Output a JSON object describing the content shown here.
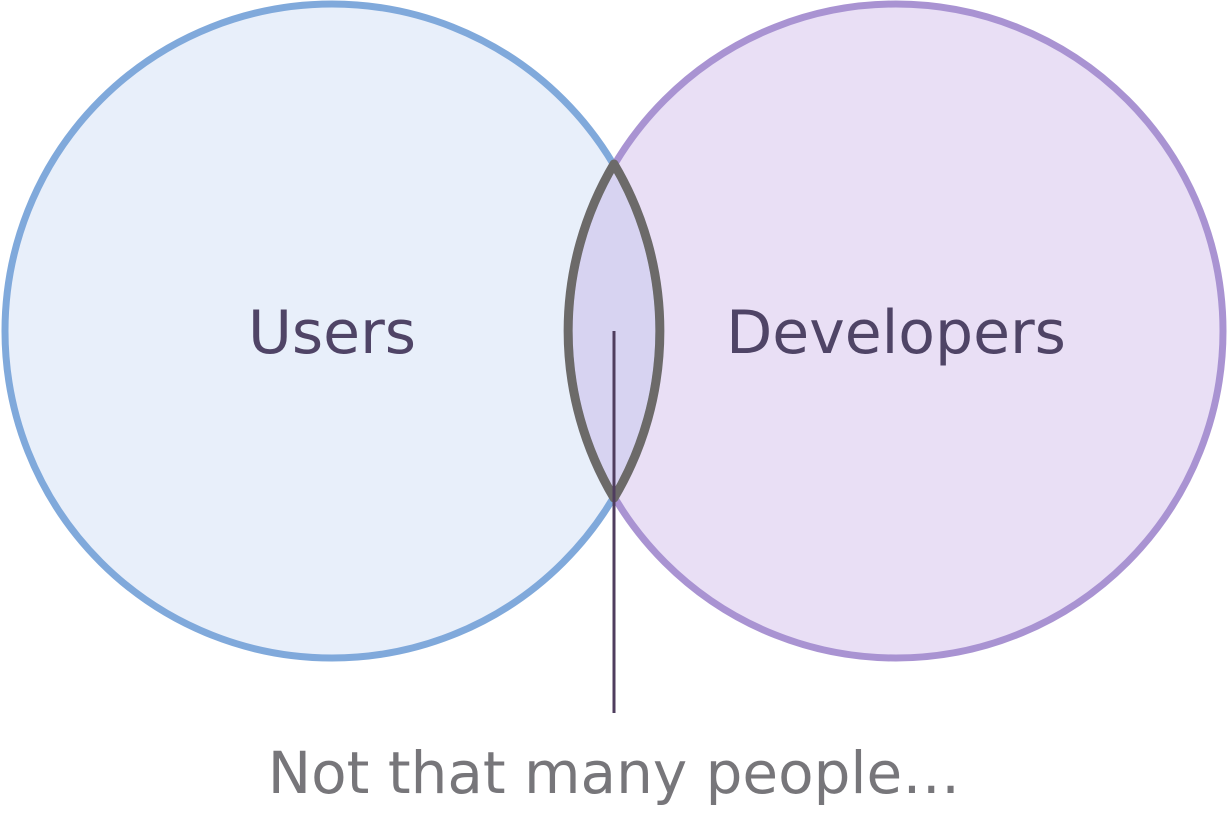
{
  "diagram": {
    "sets": [
      {
        "id": "users",
        "label": "Users",
        "fill": "#e8effa",
        "stroke": "#80a9db"
      },
      {
        "id": "developers",
        "label": "Developers",
        "fill": "#e9dff5",
        "stroke": "#a993d2"
      }
    ],
    "intersection": {
      "fill": "#d7d3f1",
      "stroke": "#6c6a69",
      "annotation": "Not that many people…",
      "pointer_color": "#4f3d5e"
    }
  }
}
